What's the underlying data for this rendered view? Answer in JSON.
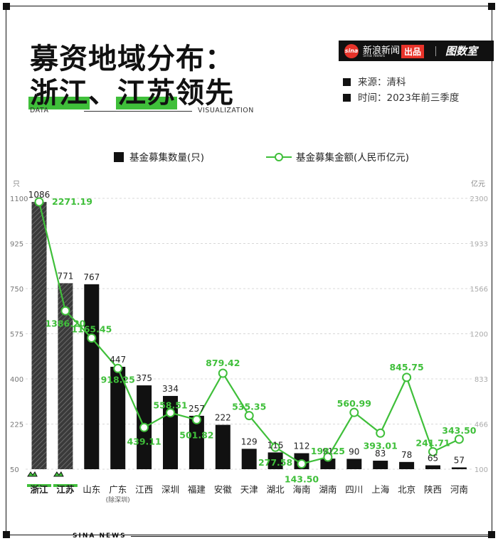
{
  "header": {
    "title_line1": "募资地域分布：",
    "title_line2_a": "浙江",
    "title_line2_sep": "、",
    "title_line2_b": "江苏",
    "title_line2_c": "领先",
    "sub_left": "DATA",
    "sub_right": "VISUALIZATION"
  },
  "brand": {
    "logo": "sina",
    "name": "新浪新闻",
    "name_en": "Sina News",
    "badge": "出品",
    "partner": "图数室"
  },
  "meta": {
    "source": "来源：清科",
    "time": "时间：2023年前三季度"
  },
  "footer": "SINA NEWS",
  "colors": {
    "bar": "#111111",
    "line": "#3fbf3a",
    "highlight": "#3fbf3a"
  },
  "chart_data": {
    "type": "bar",
    "categories": [
      "浙江",
      "江苏",
      "山东",
      "广东",
      "江西",
      "深圳",
      "福建",
      "安徽",
      "天津",
      "湖北",
      "海南",
      "湖南",
      "四川",
      "上海",
      "北京",
      "陕西",
      "河南"
    ],
    "category_notes": {
      "广东": "(除深圳)"
    },
    "series": [
      {
        "name": "基金募集数量(只)",
        "type": "bar",
        "axis": "left",
        "values": [
          1086,
          771,
          767,
          447,
          375,
          334,
          257,
          222,
          129,
          115,
          112,
          91,
          90,
          83,
          78,
          65,
          57
        ]
      },
      {
        "name": "基金募集金额(人民币亿元)",
        "type": "line",
        "axis": "right",
        "values": [
          2271.19,
          1386.2,
          1165.45,
          918.25,
          439.11,
          558.51,
          501.82,
          879.42,
          535.35,
          277.58,
          143.5,
          198.25,
          560.99,
          393.01,
          845.75,
          241.71,
          343.5
        ]
      }
    ],
    "left_axis": {
      "unit": "只",
      "ticks": [
        "1100",
        "925",
        "750",
        "575",
        "400",
        "225",
        "50"
      ],
      "range": [
        50,
        1100
      ]
    },
    "right_axis": {
      "unit": "亿元",
      "ticks": [
        "2300",
        "1933",
        "1566",
        "1200",
        "833",
        "466",
        "100"
      ],
      "range": [
        100,
        2300
      ]
    },
    "highlighted": [
      "浙江",
      "江苏"
    ]
  }
}
